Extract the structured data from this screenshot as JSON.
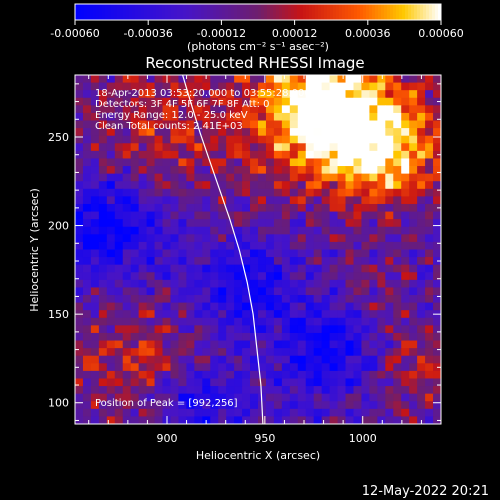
{
  "chart_data": {
    "type": "heatmap",
    "title": "Reconstructed RHESSI Image",
    "xlabel": "Heliocentric X (arcsec)",
    "ylabel": "Heliocentric Y (arcsec)",
    "xlim": [
      853,
      1040
    ],
    "ylim": [
      88,
      285
    ],
    "x_ticks": [
      900,
      950,
      1000
    ],
    "x_tick_labels": [
      "900",
      "950",
      "1000"
    ],
    "y_ticks": [
      100,
      150,
      200,
      250
    ],
    "y_tick_labels": [
      "100",
      "150",
      "200",
      "250"
    ],
    "colorbar": {
      "range": [
        -0.0006,
        0.0006
      ],
      "ticks": [
        -0.0006,
        -0.00036,
        -0.00012,
        0.00012,
        0.00036,
        0.0006
      ],
      "tick_labels": [
        "-0.00060",
        "-0.00036",
        "-0.00012",
        "0.00012",
        "0.00036",
        "0.00060"
      ],
      "units": "(photons cm⁻² s⁻¹ asec⁻²)"
    },
    "annotations": [
      "18-Apr-2013 03:53:20.000 to 03:55:28.000",
      "Detectors: 3F 4F 5F 6F 7F 8F Att: 0",
      "Energy Range: 12.0 - 25.0 keV",
      "Clean      Total counts: 2.41E+03"
    ],
    "peak_label": "Position of Peak = [992,256]",
    "peak": [
      992,
      256
    ],
    "limb_curve": {
      "x": [
        908,
        912,
        917,
        922,
        927,
        932,
        937,
        941,
        944,
        946,
        948,
        949
      ],
      "y": [
        285,
        270,
        252,
        236,
        220,
        204,
        186,
        168,
        150,
        130,
        110,
        88
      ]
    },
    "hot_regions": [
      {
        "x": 993,
        "y": 258,
        "r": 40,
        "v": 0.0006
      },
      {
        "x": 975,
        "y": 268,
        "r": 30,
        "v": 0.00045
      },
      {
        "x": 1015,
        "y": 240,
        "r": 30,
        "v": 0.0004
      },
      {
        "x": 900,
        "y": 255,
        "r": 50,
        "v": 0.0003
      },
      {
        "x": 880,
        "y": 125,
        "r": 35,
        "v": 0.0003
      },
      {
        "x": 1025,
        "y": 118,
        "r": 28,
        "v": 0.00028
      },
      {
        "x": 1005,
        "y": 165,
        "r": 22,
        "v": 0.00015
      }
    ],
    "cold_regions": [
      {
        "x": 870,
        "y": 200,
        "r": 30,
        "v": -0.00045
      },
      {
        "x": 940,
        "y": 165,
        "r": 25,
        "v": -0.00035
      },
      {
        "x": 985,
        "y": 130,
        "r": 25,
        "v": -0.0004
      },
      {
        "x": 915,
        "y": 100,
        "r": 20,
        "v": -0.0003
      }
    ]
  },
  "footer_date": "12-May-2022 20:21"
}
